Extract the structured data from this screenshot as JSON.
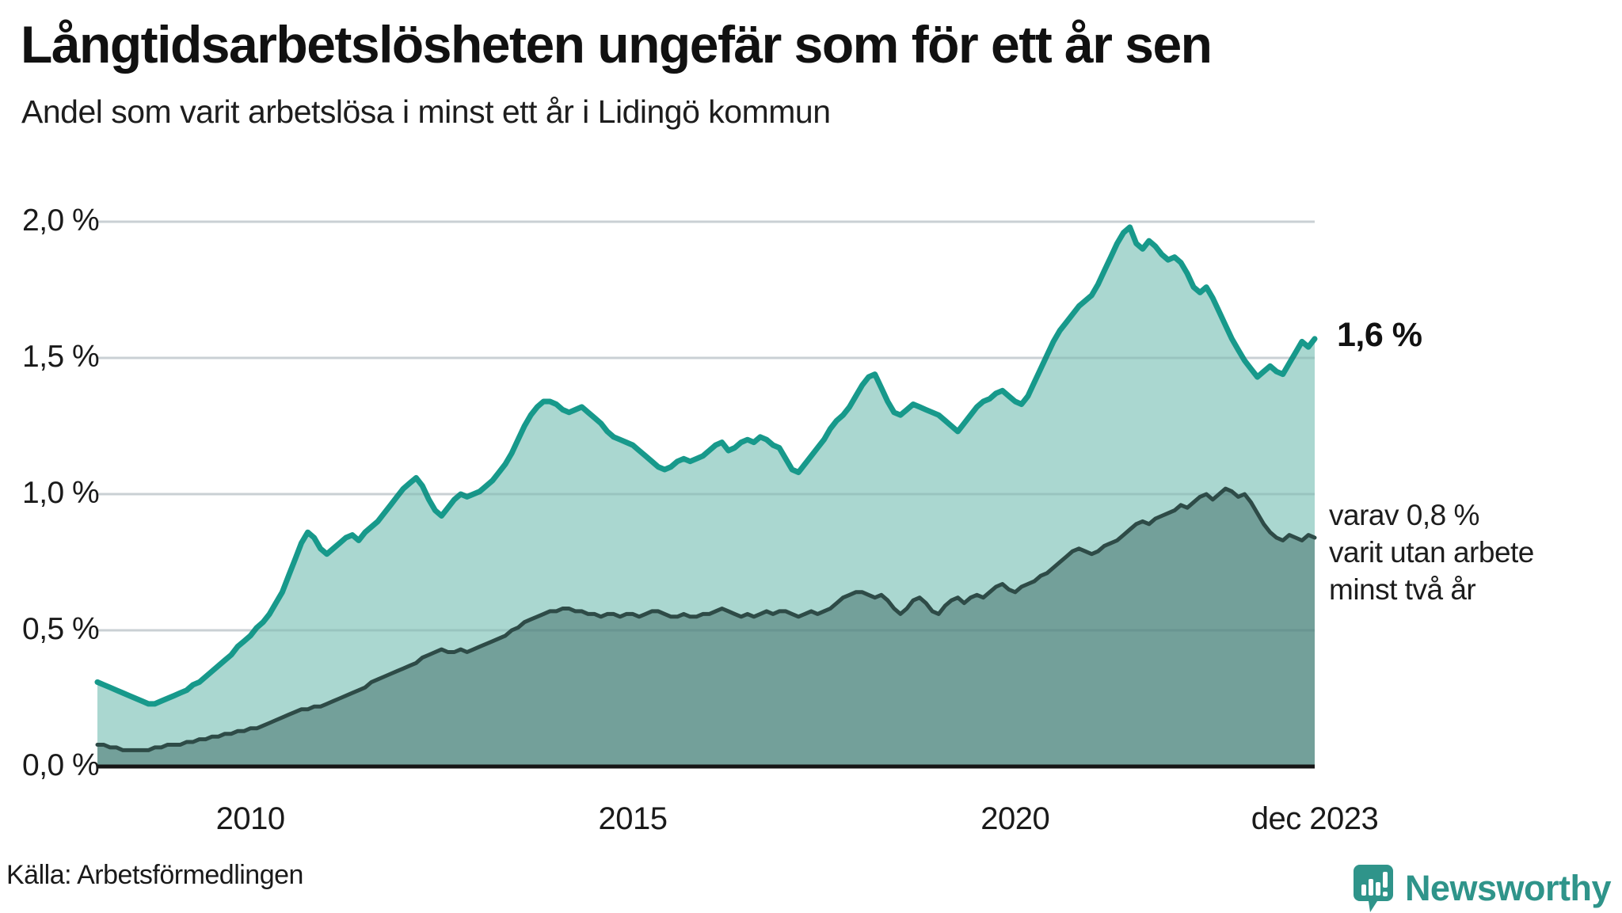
{
  "header": {
    "title": "Långtidsarbetslösheten ungefär som för ett år sen",
    "subtitle": "Andel som varit arbetslösa i minst ett år i Lidingö kommun"
  },
  "annotations": {
    "end_value_label": "1,6 %",
    "subset_label_lines": [
      "varav 0,8 %",
      "varit utan arbete",
      "minst två år"
    ]
  },
  "footer": {
    "source": "Källa: Arbetsförmedlingen",
    "brand_name": "Newsworthy"
  },
  "colors": {
    "series1_line": "#17998b",
    "series1_fill": "#aad7d0",
    "series2_line": "#2e4b47",
    "series2_fill": "#73a09a",
    "grid": "#e3e5e8",
    "grid_overlay": "rgba(50,85,90,0.14)",
    "axis_baseline": "#161616",
    "brand_teal": "#2f948a"
  },
  "chart_data": {
    "type": "area",
    "title": "Långtidsarbetslösheten ungefär som för ett år sen",
    "subtitle": "Andel som varit arbetslösa i minst ett år i Lidingö kommun",
    "x_start_year": 2008,
    "months_per_point": 1,
    "x_ticks": [
      {
        "label": "2010",
        "month_index": 24
      },
      {
        "label": "2015",
        "month_index": 84
      },
      {
        "label": "2020",
        "month_index": 144
      },
      {
        "label": "dec 2023",
        "month_index": 191
      }
    ],
    "y_ticks": [
      {
        "label": "0,0 %",
        "value": 0.0
      },
      {
        "label": "0,5 %",
        "value": 0.5
      },
      {
        "label": "1,0 %",
        "value": 1.0
      },
      {
        "label": "1,5 %",
        "value": 1.5
      },
      {
        "label": "2,0 %",
        "value": 2.0
      }
    ],
    "ylim": [
      0,
      2.05
    ],
    "grid": true,
    "legend_position": "annotations-right",
    "series": [
      {
        "name": "Andel arbetslösa minst ett år",
        "end_label": "1,6 %",
        "values": [
          0.31,
          0.3,
          0.29,
          0.28,
          0.27,
          0.26,
          0.25,
          0.24,
          0.23,
          0.23,
          0.24,
          0.25,
          0.26,
          0.27,
          0.28,
          0.3,
          0.31,
          0.33,
          0.35,
          0.37,
          0.39,
          0.41,
          0.44,
          0.46,
          0.48,
          0.51,
          0.53,
          0.56,
          0.6,
          0.64,
          0.7,
          0.76,
          0.82,
          0.86,
          0.84,
          0.8,
          0.78,
          0.8,
          0.82,
          0.84,
          0.85,
          0.83,
          0.86,
          0.88,
          0.9,
          0.93,
          0.96,
          0.99,
          1.02,
          1.04,
          1.06,
          1.03,
          0.98,
          0.94,
          0.92,
          0.95,
          0.98,
          1.0,
          0.99,
          1.0,
          1.01,
          1.03,
          1.05,
          1.08,
          1.11,
          1.15,
          1.2,
          1.25,
          1.29,
          1.32,
          1.34,
          1.34,
          1.33,
          1.31,
          1.3,
          1.31,
          1.32,
          1.3,
          1.28,
          1.26,
          1.23,
          1.21,
          1.2,
          1.19,
          1.18,
          1.16,
          1.14,
          1.12,
          1.1,
          1.09,
          1.1,
          1.12,
          1.13,
          1.12,
          1.13,
          1.14,
          1.16,
          1.18,
          1.19,
          1.16,
          1.17,
          1.19,
          1.2,
          1.19,
          1.21,
          1.2,
          1.18,
          1.17,
          1.13,
          1.09,
          1.08,
          1.11,
          1.14,
          1.17,
          1.2,
          1.24,
          1.27,
          1.29,
          1.32,
          1.36,
          1.4,
          1.43,
          1.44,
          1.39,
          1.34,
          1.3,
          1.29,
          1.31,
          1.33,
          1.32,
          1.31,
          1.3,
          1.29,
          1.27,
          1.25,
          1.23,
          1.26,
          1.29,
          1.32,
          1.34,
          1.35,
          1.37,
          1.38,
          1.36,
          1.34,
          1.33,
          1.36,
          1.41,
          1.46,
          1.51,
          1.56,
          1.6,
          1.63,
          1.66,
          1.69,
          1.71,
          1.73,
          1.77,
          1.82,
          1.87,
          1.92,
          1.96,
          1.98,
          1.92,
          1.9,
          1.93,
          1.91,
          1.88,
          1.86,
          1.87,
          1.85,
          1.81,
          1.76,
          1.74,
          1.76,
          1.72,
          1.67,
          1.62,
          1.57,
          1.53,
          1.49,
          1.46,
          1.43,
          1.45,
          1.47,
          1.45,
          1.44,
          1.48,
          1.52,
          1.56,
          1.54,
          1.57
        ]
      },
      {
        "name": "varav utan arbete minst två år",
        "end_label": "varav 0,8 % varit utan arbete minst två år",
        "values": [
          0.08,
          0.08,
          0.07,
          0.07,
          0.06,
          0.06,
          0.06,
          0.06,
          0.06,
          0.07,
          0.07,
          0.08,
          0.08,
          0.08,
          0.09,
          0.09,
          0.1,
          0.1,
          0.11,
          0.11,
          0.12,
          0.12,
          0.13,
          0.13,
          0.14,
          0.14,
          0.15,
          0.16,
          0.17,
          0.18,
          0.19,
          0.2,
          0.21,
          0.21,
          0.22,
          0.22,
          0.23,
          0.24,
          0.25,
          0.26,
          0.27,
          0.28,
          0.29,
          0.31,
          0.32,
          0.33,
          0.34,
          0.35,
          0.36,
          0.37,
          0.38,
          0.4,
          0.41,
          0.42,
          0.43,
          0.42,
          0.42,
          0.43,
          0.42,
          0.43,
          0.44,
          0.45,
          0.46,
          0.47,
          0.48,
          0.5,
          0.51,
          0.53,
          0.54,
          0.55,
          0.56,
          0.57,
          0.57,
          0.58,
          0.58,
          0.57,
          0.57,
          0.56,
          0.56,
          0.55,
          0.56,
          0.56,
          0.55,
          0.56,
          0.56,
          0.55,
          0.56,
          0.57,
          0.57,
          0.56,
          0.55,
          0.55,
          0.56,
          0.55,
          0.55,
          0.56,
          0.56,
          0.57,
          0.58,
          0.57,
          0.56,
          0.55,
          0.56,
          0.55,
          0.56,
          0.57,
          0.56,
          0.57,
          0.57,
          0.56,
          0.55,
          0.56,
          0.57,
          0.56,
          0.57,
          0.58,
          0.6,
          0.62,
          0.63,
          0.64,
          0.64,
          0.63,
          0.62,
          0.63,
          0.61,
          0.58,
          0.56,
          0.58,
          0.61,
          0.62,
          0.6,
          0.57,
          0.56,
          0.59,
          0.61,
          0.62,
          0.6,
          0.62,
          0.63,
          0.62,
          0.64,
          0.66,
          0.67,
          0.65,
          0.64,
          0.66,
          0.67,
          0.68,
          0.7,
          0.71,
          0.73,
          0.75,
          0.77,
          0.79,
          0.8,
          0.79,
          0.78,
          0.79,
          0.81,
          0.82,
          0.83,
          0.85,
          0.87,
          0.89,
          0.9,
          0.89,
          0.91,
          0.92,
          0.93,
          0.94,
          0.96,
          0.95,
          0.97,
          0.99,
          1.0,
          0.98,
          1.0,
          1.02,
          1.01,
          0.99,
          1.0,
          0.97,
          0.93,
          0.89,
          0.86,
          0.84,
          0.83,
          0.85,
          0.84,
          0.83,
          0.85,
          0.84
        ]
      }
    ]
  }
}
